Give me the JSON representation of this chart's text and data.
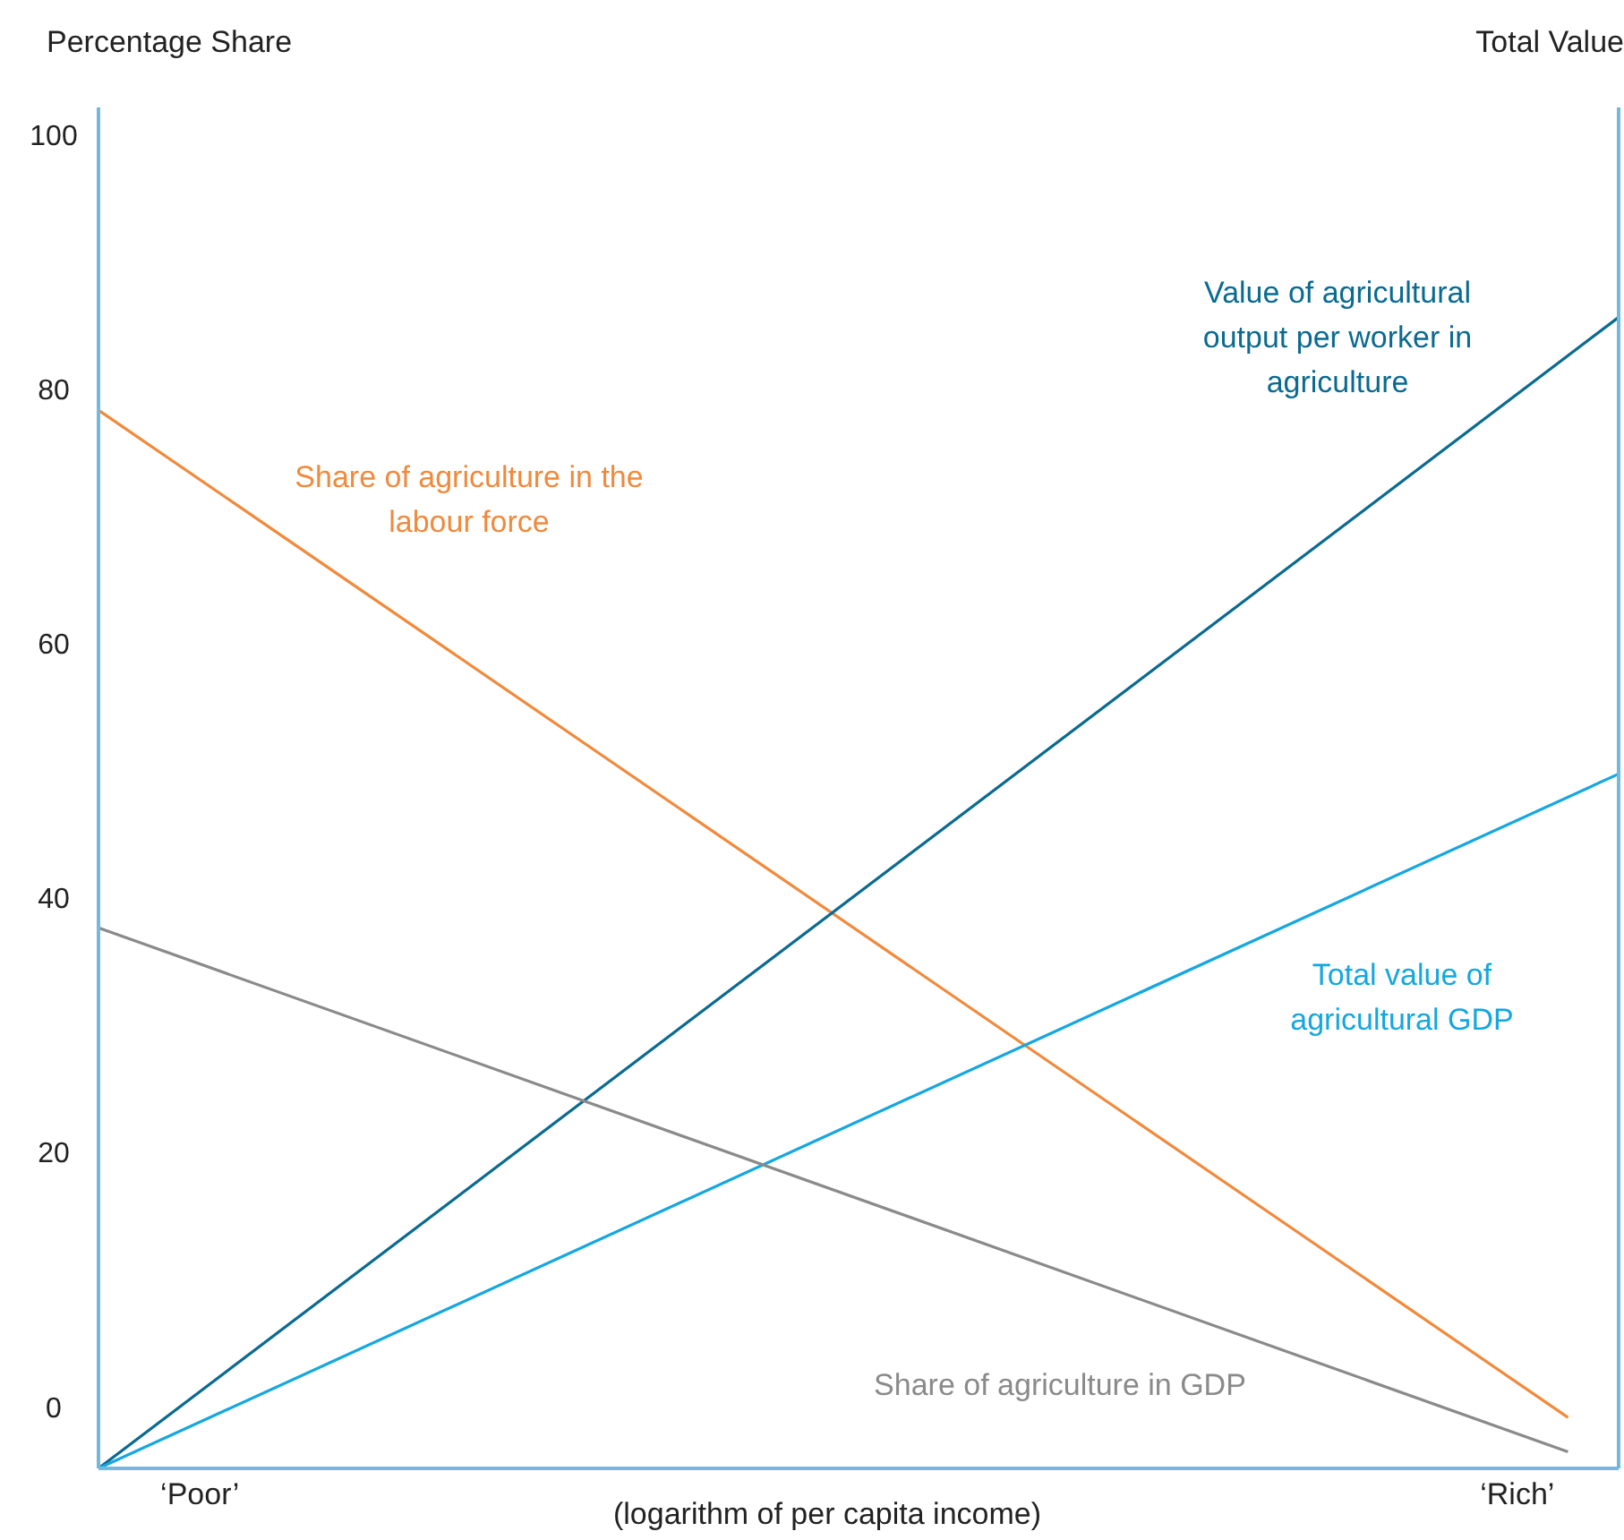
{
  "chart_data": {
    "type": "line",
    "ylabel": "Percentage Share",
    "y2label": "Total Value",
    "xlabel": "(logarithm of per capita income)",
    "categories": [
      null,
      null,
      "‘Poor’",
      null,
      null,
      null,
      null,
      null,
      null,
      null,
      null,
      null,
      null,
      null,
      null,
      null,
      null,
      null,
      null,
      null,
      null,
      null,
      null,
      null,
      null,
      null,
      null,
      null,
      "‘Rich’",
      null,
      null
    ],
    "ylim": [
      -4,
      103
    ],
    "yticks": [
      0,
      20,
      40,
      60,
      80,
      100
    ],
    "marker": "none",
    "line_style": "solid",
    "series": [
      {
        "name": "Share of agriculture in the labour force",
        "color": "#f08a3c",
        "values": [
          79.2,
          null,
          null,
          null,
          null,
          null,
          null,
          null,
          null,
          null,
          null,
          null,
          null,
          null,
          null,
          null,
          null,
          null,
          null,
          null,
          null,
          null,
          null,
          null,
          null,
          null,
          null,
          null,
          null,
          0,
          null
        ]
      },
      {
        "name": "Value of agricultural output per worker in agriculture",
        "color": "#0a6a90",
        "values": [
          -4,
          null,
          null,
          null,
          null,
          null,
          null,
          null,
          null,
          null,
          null,
          null,
          null,
          null,
          null,
          null,
          null,
          null,
          null,
          null,
          null,
          null,
          null,
          null,
          null,
          null,
          null,
          null,
          null,
          null,
          86.5
        ]
      },
      {
        "name": "Total value of agricultural GDP",
        "color": "#14a7e0",
        "values": [
          -4,
          null,
          null,
          null,
          null,
          null,
          null,
          null,
          null,
          null,
          null,
          null,
          null,
          null,
          null,
          null,
          null,
          null,
          null,
          null,
          null,
          null,
          null,
          null,
          null,
          null,
          null,
          null,
          null,
          null,
          50.6
        ]
      },
      {
        "name": "Share of agriculture in GDP",
        "color": "#8a8a8a",
        "values": [
          38.5,
          null,
          null,
          null,
          null,
          null,
          null,
          null,
          null,
          null,
          null,
          null,
          null,
          null,
          null,
          null,
          null,
          null,
          null,
          null,
          null,
          null,
          null,
          null,
          null,
          null,
          null,
          null,
          null,
          -2.7,
          null
        ]
      }
    ]
  }
}
